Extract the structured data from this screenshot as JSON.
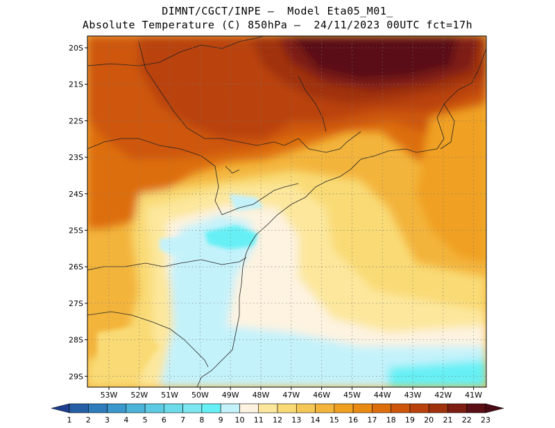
{
  "header": {
    "line1": "DIMNT/CGCT/INPE –  Model Eta05_M01_",
    "line2": "Absolute Temperature (C) 850hPa –  24/11/2023 00UTC fct=17h"
  },
  "map": {
    "lat_labels": [
      "20S",
      "21S",
      "22S",
      "23S",
      "24S",
      "25S",
      "26S",
      "27S",
      "28S",
      "29S"
    ],
    "lon_labels": [
      "53W",
      "52W",
      "51W",
      "50W",
      "49W",
      "48W",
      "47W",
      "46W",
      "45W",
      "44W",
      "43W",
      "42W",
      "41W"
    ],
    "background_color": "#f3b43c"
  },
  "colorbar": {
    "labels": [
      "1",
      "2",
      "3",
      "4",
      "5",
      "6",
      "7",
      "8",
      "9",
      "10",
      "11",
      "12",
      "13",
      "14",
      "15",
      "16",
      "17",
      "18",
      "19",
      "20",
      "21",
      "22",
      "23"
    ],
    "colors": [
      "#1e3f8f",
      "#275fa6",
      "#2e7cbc",
      "#3a98cc",
      "#4cb3d8",
      "#5ccbe3",
      "#6cdcea",
      "#7ce7f0",
      "#66f0f5",
      "#c4f2fb",
      "#fdf3e0",
      "#fce79c",
      "#f9da75",
      "#f5c757",
      "#f3b43c",
      "#f0a021",
      "#e98a12",
      "#dd6e0c",
      "#ce560b",
      "#b9420c",
      "#a0310d",
      "#7e1d12",
      "#5a0e16",
      "#4a0a14"
    ]
  }
}
